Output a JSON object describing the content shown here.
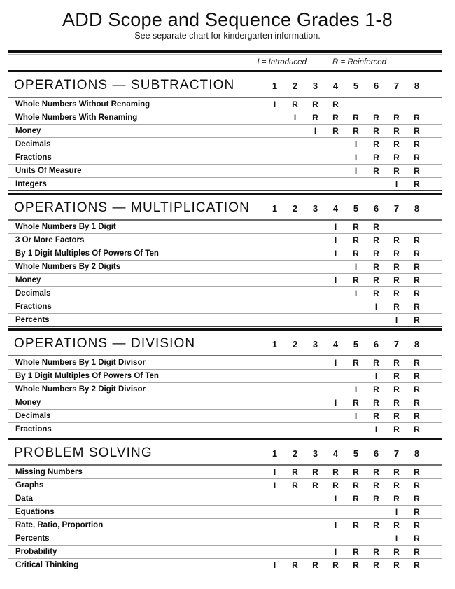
{
  "page": {
    "title": "ADD Scope and Sequence Grades 1-8",
    "subtitle": "See separate chart for kindergarten information."
  },
  "legend": {
    "introduced": "I = Introduced",
    "reinforced": "R = Reinforced"
  },
  "grades": [
    "1",
    "2",
    "3",
    "4",
    "5",
    "6",
    "7",
    "8"
  ],
  "sections": [
    {
      "title": "OPERATIONS — SUBTRACTION",
      "rows": [
        {
          "label": "Whole Numbers Without Renaming",
          "marks": [
            "I",
            "R",
            "R",
            "R",
            "",
            "",
            "",
            ""
          ]
        },
        {
          "label": "Whole Numbers With Renaming",
          "marks": [
            "",
            "I",
            "R",
            "R",
            "R",
            "R",
            "R",
            "R"
          ]
        },
        {
          "label": "Money",
          "marks": [
            "",
            "",
            "I",
            "R",
            "R",
            "R",
            "R",
            "R"
          ]
        },
        {
          "label": "Decimals",
          "marks": [
            "",
            "",
            "",
            "",
            "I",
            "R",
            "R",
            "R"
          ]
        },
        {
          "label": "Fractions",
          "marks": [
            "",
            "",
            "",
            "",
            "I",
            "R",
            "R",
            "R"
          ]
        },
        {
          "label": "Units Of Measure",
          "marks": [
            "",
            "",
            "",
            "",
            "I",
            "R",
            "R",
            "R"
          ]
        },
        {
          "label": "Integers",
          "marks": [
            "",
            "",
            "",
            "",
            "",
            "",
            "I",
            "R"
          ]
        }
      ]
    },
    {
      "title": "OPERATIONS — MULTIPLICATION",
      "rows": [
        {
          "label": "Whole Numbers By 1 Digit",
          "marks": [
            "",
            "",
            "",
            "I",
            "R",
            "R",
            "",
            ""
          ]
        },
        {
          "label": "3 Or More Factors",
          "marks": [
            "",
            "",
            "",
            "I",
            "R",
            "R",
            "R",
            "R"
          ]
        },
        {
          "label": "By 1 Digit Multiples Of Powers Of Ten",
          "marks": [
            "",
            "",
            "",
            "I",
            "R",
            "R",
            "R",
            "R"
          ]
        },
        {
          "label": "Whole Numbers By 2 Digits",
          "marks": [
            "",
            "",
            "",
            "",
            "I",
            "R",
            "R",
            "R"
          ]
        },
        {
          "label": "Money",
          "marks": [
            "",
            "",
            "",
            "I",
            "R",
            "R",
            "R",
            "R"
          ]
        },
        {
          "label": "Decimals",
          "marks": [
            "",
            "",
            "",
            "",
            "I",
            "R",
            "R",
            "R"
          ]
        },
        {
          "label": "Fractions",
          "marks": [
            "",
            "",
            "",
            "",
            "",
            "I",
            "R",
            "R"
          ]
        },
        {
          "label": "Percents",
          "marks": [
            "",
            "",
            "",
            "",
            "",
            "",
            "I",
            "R"
          ]
        }
      ]
    },
    {
      "title": "OPERATIONS — DIVISION",
      "rows": [
        {
          "label": "Whole Numbers By 1 Digit Divisor",
          "marks": [
            "",
            "",
            "",
            "I",
            "R",
            "R",
            "R",
            "R"
          ]
        },
        {
          "label": "By 1 Digit Multiples Of Powers Of Ten",
          "marks": [
            "",
            "",
            "",
            "",
            "",
            "I",
            "R",
            "R"
          ]
        },
        {
          "label": "Whole Numbers By 2 Digit Divisor",
          "marks": [
            "",
            "",
            "",
            "",
            "I",
            "R",
            "R",
            "R"
          ]
        },
        {
          "label": "Money",
          "marks": [
            "",
            "",
            "",
            "I",
            "R",
            "R",
            "R",
            "R"
          ]
        },
        {
          "label": "Decimals",
          "marks": [
            "",
            "",
            "",
            "",
            "I",
            "R",
            "R",
            "R"
          ]
        },
        {
          "label": "Fractions",
          "marks": [
            "",
            "",
            "",
            "",
            "",
            "I",
            "R",
            "R"
          ]
        }
      ]
    },
    {
      "title": "PROBLEM SOLVING",
      "rows": [
        {
          "label": "Missing Numbers",
          "marks": [
            "I",
            "R",
            "R",
            "R",
            "R",
            "R",
            "R",
            "R"
          ]
        },
        {
          "label": "Graphs",
          "marks": [
            "I",
            "R",
            "R",
            "R",
            "R",
            "R",
            "R",
            "R"
          ]
        },
        {
          "label": "Data",
          "marks": [
            "",
            "",
            "",
            "I",
            "R",
            "R",
            "R",
            "R"
          ]
        },
        {
          "label": "Equations",
          "marks": [
            "",
            "",
            "",
            "",
            "",
            "",
            "I",
            "R"
          ]
        },
        {
          "label": "Rate, Ratio, Proportion",
          "marks": [
            "",
            "",
            "",
            "I",
            "R",
            "R",
            "R",
            "R"
          ]
        },
        {
          "label": "Percents",
          "marks": [
            "",
            "",
            "",
            "",
            "",
            "",
            "I",
            "R"
          ]
        },
        {
          "label": "Probability",
          "marks": [
            "",
            "",
            "",
            "I",
            "R",
            "R",
            "R",
            "R"
          ]
        },
        {
          "label": "Critical Thinking",
          "marks": [
            "I",
            "R",
            "R",
            "R",
            "R",
            "R",
            "R",
            "R"
          ]
        }
      ]
    }
  ]
}
